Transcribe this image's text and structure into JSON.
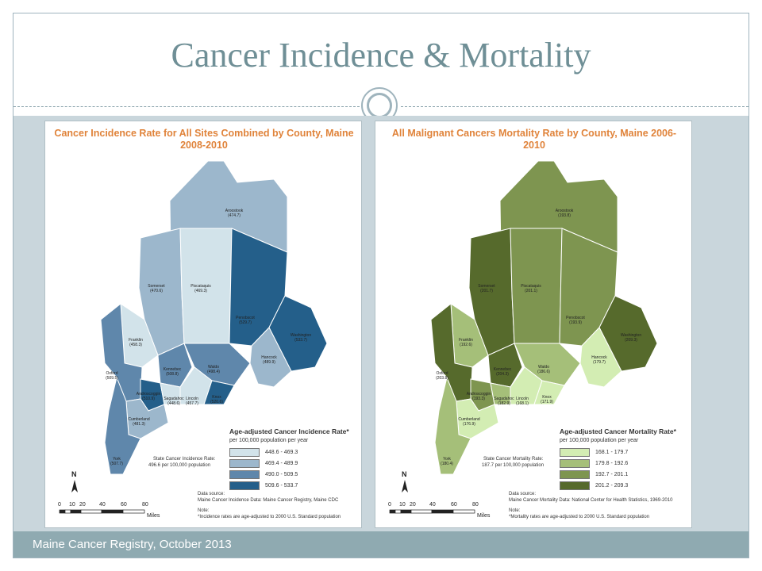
{
  "slide_title": "Cancer Incidence & Mortality",
  "footer": "Maine Cancer Registry, October 2013",
  "left_map": {
    "title": "Cancer Incidence Rate for All Sites Combined by County, Maine 2008-2010",
    "legend_title": "Age-adjusted Cancer Incidence Rate*",
    "legend_subtitle": "per 100,000 population per year",
    "legend": [
      {
        "range": "448.6 - 469.3",
        "color": "#d2e3ea"
      },
      {
        "range": "469.4 - 489.9",
        "color": "#9cb7cc"
      },
      {
        "range": "490.0 - 509.5",
        "color": "#5f87ab"
      },
      {
        "range": "509.6 - 533.7",
        "color": "#245f8a"
      }
    ],
    "state_rate_label": "State Cancer Incidence Rate:",
    "state_rate_value": "496.6 per 100,000 population",
    "data_source_label": "Data source:",
    "data_source": "Maine Cancer Incidence Data: Maine Cancer Registry, Maine CDC",
    "note_label": "Note:",
    "note": "*Incidence rates are age-adjusted to 2000 U.S. Standard population",
    "counties": [
      {
        "name": "Aroostook",
        "value": "(474.7)"
      },
      {
        "name": "Somerset",
        "value": "(470.6)"
      },
      {
        "name": "Piscataquis",
        "value": "(469.3)"
      },
      {
        "name": "Penobscot",
        "value": "(529.7)"
      },
      {
        "name": "Washington",
        "value": "(533.7)"
      },
      {
        "name": "Franklin",
        "value": "(458.3)"
      },
      {
        "name": "Hancock",
        "value": "(489.9)"
      },
      {
        "name": "Oxford",
        "value": "(509.5)"
      },
      {
        "name": "Kennebec",
        "value": "(508.8)"
      },
      {
        "name": "Waldo",
        "value": "(498.4)"
      },
      {
        "name": "Androscoggin",
        "value": "(510.9)"
      },
      {
        "name": "Sagadahoc",
        "value": "(448.6)"
      },
      {
        "name": "Lincoln",
        "value": "(457.7)"
      },
      {
        "name": "Knox",
        "value": "(520.6)"
      },
      {
        "name": "Cumberland",
        "value": "(481.3)"
      },
      {
        "name": "York",
        "value": "(507.7)"
      }
    ]
  },
  "right_map": {
    "title": "All Malignant Cancers Mortality Rate by County, Maine 2006-2010",
    "legend_title": "Age-adjusted Cancer Mortality Rate*",
    "legend_subtitle": "per 100,000 population per year",
    "legend": [
      {
        "range": "168.1 - 179.7",
        "color": "#d3edb3"
      },
      {
        "range": "179.8 - 192.6",
        "color": "#a5bf79"
      },
      {
        "range": "192.7 - 201.1",
        "color": "#7e9550"
      },
      {
        "range": "201.2 - 209.3",
        "color": "#566a2c"
      }
    ],
    "state_rate_label": "State Cancer Mortality Rate:",
    "state_rate_value": "187.7 per 100,000 population",
    "data_source_label": "Data source:",
    "data_source": "Maine Cancer Mortality Data: National Center for Health Statistics, 1969-2010",
    "note_label": "Note:",
    "note": "*Mortality rates are age-adjusted to 2000 U.S. Standard population",
    "counties": [
      {
        "name": "Aroostook",
        "value": "(193.8)"
      },
      {
        "name": "Somerset",
        "value": "(201.7)"
      },
      {
        "name": "Piscataquis",
        "value": "(201.1)"
      },
      {
        "name": "Penobscot",
        "value": "(193.9)"
      },
      {
        "name": "Washington",
        "value": "(209.3)"
      },
      {
        "name": "Franklin",
        "value": "(192.6)"
      },
      {
        "name": "Hancock",
        "value": "(179.7)"
      },
      {
        "name": "Oxford",
        "value": "(203.8)"
      },
      {
        "name": "Kennebec",
        "value": "(204.3)"
      },
      {
        "name": "Waldo",
        "value": "(186.6)"
      },
      {
        "name": "Androscoggin",
        "value": "(193.3)"
      },
      {
        "name": "Sagadahoc",
        "value": "(182.9)"
      },
      {
        "name": "Lincoln",
        "value": "(168.1)"
      },
      {
        "name": "Knox",
        "value": "(171.9)"
      },
      {
        "name": "Cumberland",
        "value": "(176.9)"
      },
      {
        "name": "York",
        "value": "(180.4)"
      }
    ]
  },
  "north_label": "N",
  "scale": {
    "ticks": [
      "0",
      "10",
      "20",
      "40",
      "60",
      "80"
    ],
    "unit": "Miles"
  }
}
